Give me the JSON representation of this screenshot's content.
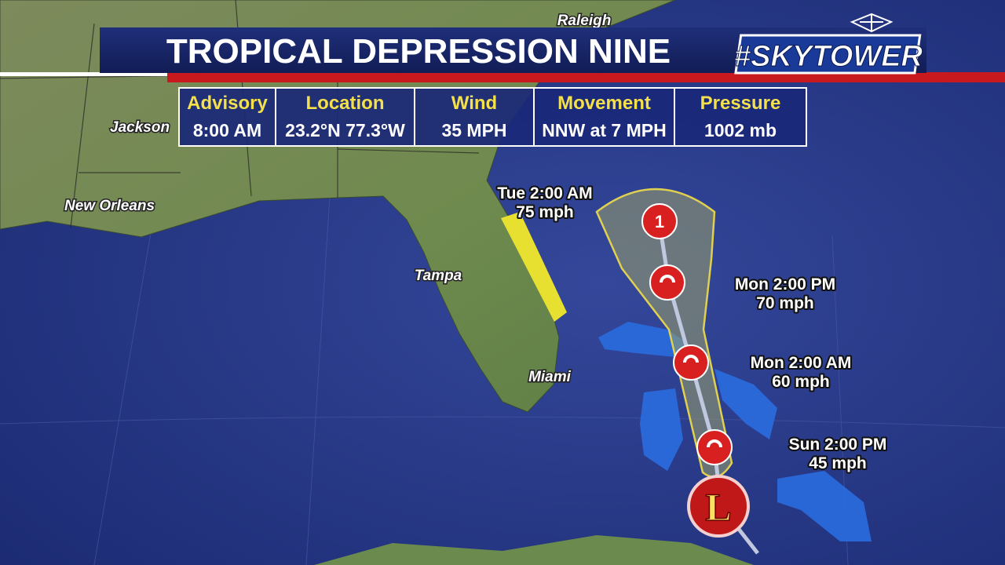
{
  "title": "TROPICAL DEPRESSION NINE",
  "brand": "#SKYTOWER",
  "advisory": {
    "headers": [
      "Advisory",
      "Location",
      "Wind",
      "Movement",
      "Pressure"
    ],
    "values": [
      "8:00 AM",
      "23.2°N  77.3°W",
      "35 MPH",
      "NNW at 7 MPH",
      "1002 mb"
    ]
  },
  "cities": [
    "Raleigh",
    "Jackson",
    "New Orleans",
    "Tampa",
    "Miami"
  ],
  "forecast": [
    {
      "time": "Tue 2:00 AM",
      "wind": "75 mph"
    },
    {
      "time": "Mon 2:00 PM",
      "wind": "70 mph"
    },
    {
      "time": "Mon 2:00 AM",
      "wind": "60 mph"
    },
    {
      "time": "Sun 2:00 PM",
      "wind": "45 mph"
    }
  ],
  "symbols": {
    "category": "1",
    "low": "L"
  }
}
